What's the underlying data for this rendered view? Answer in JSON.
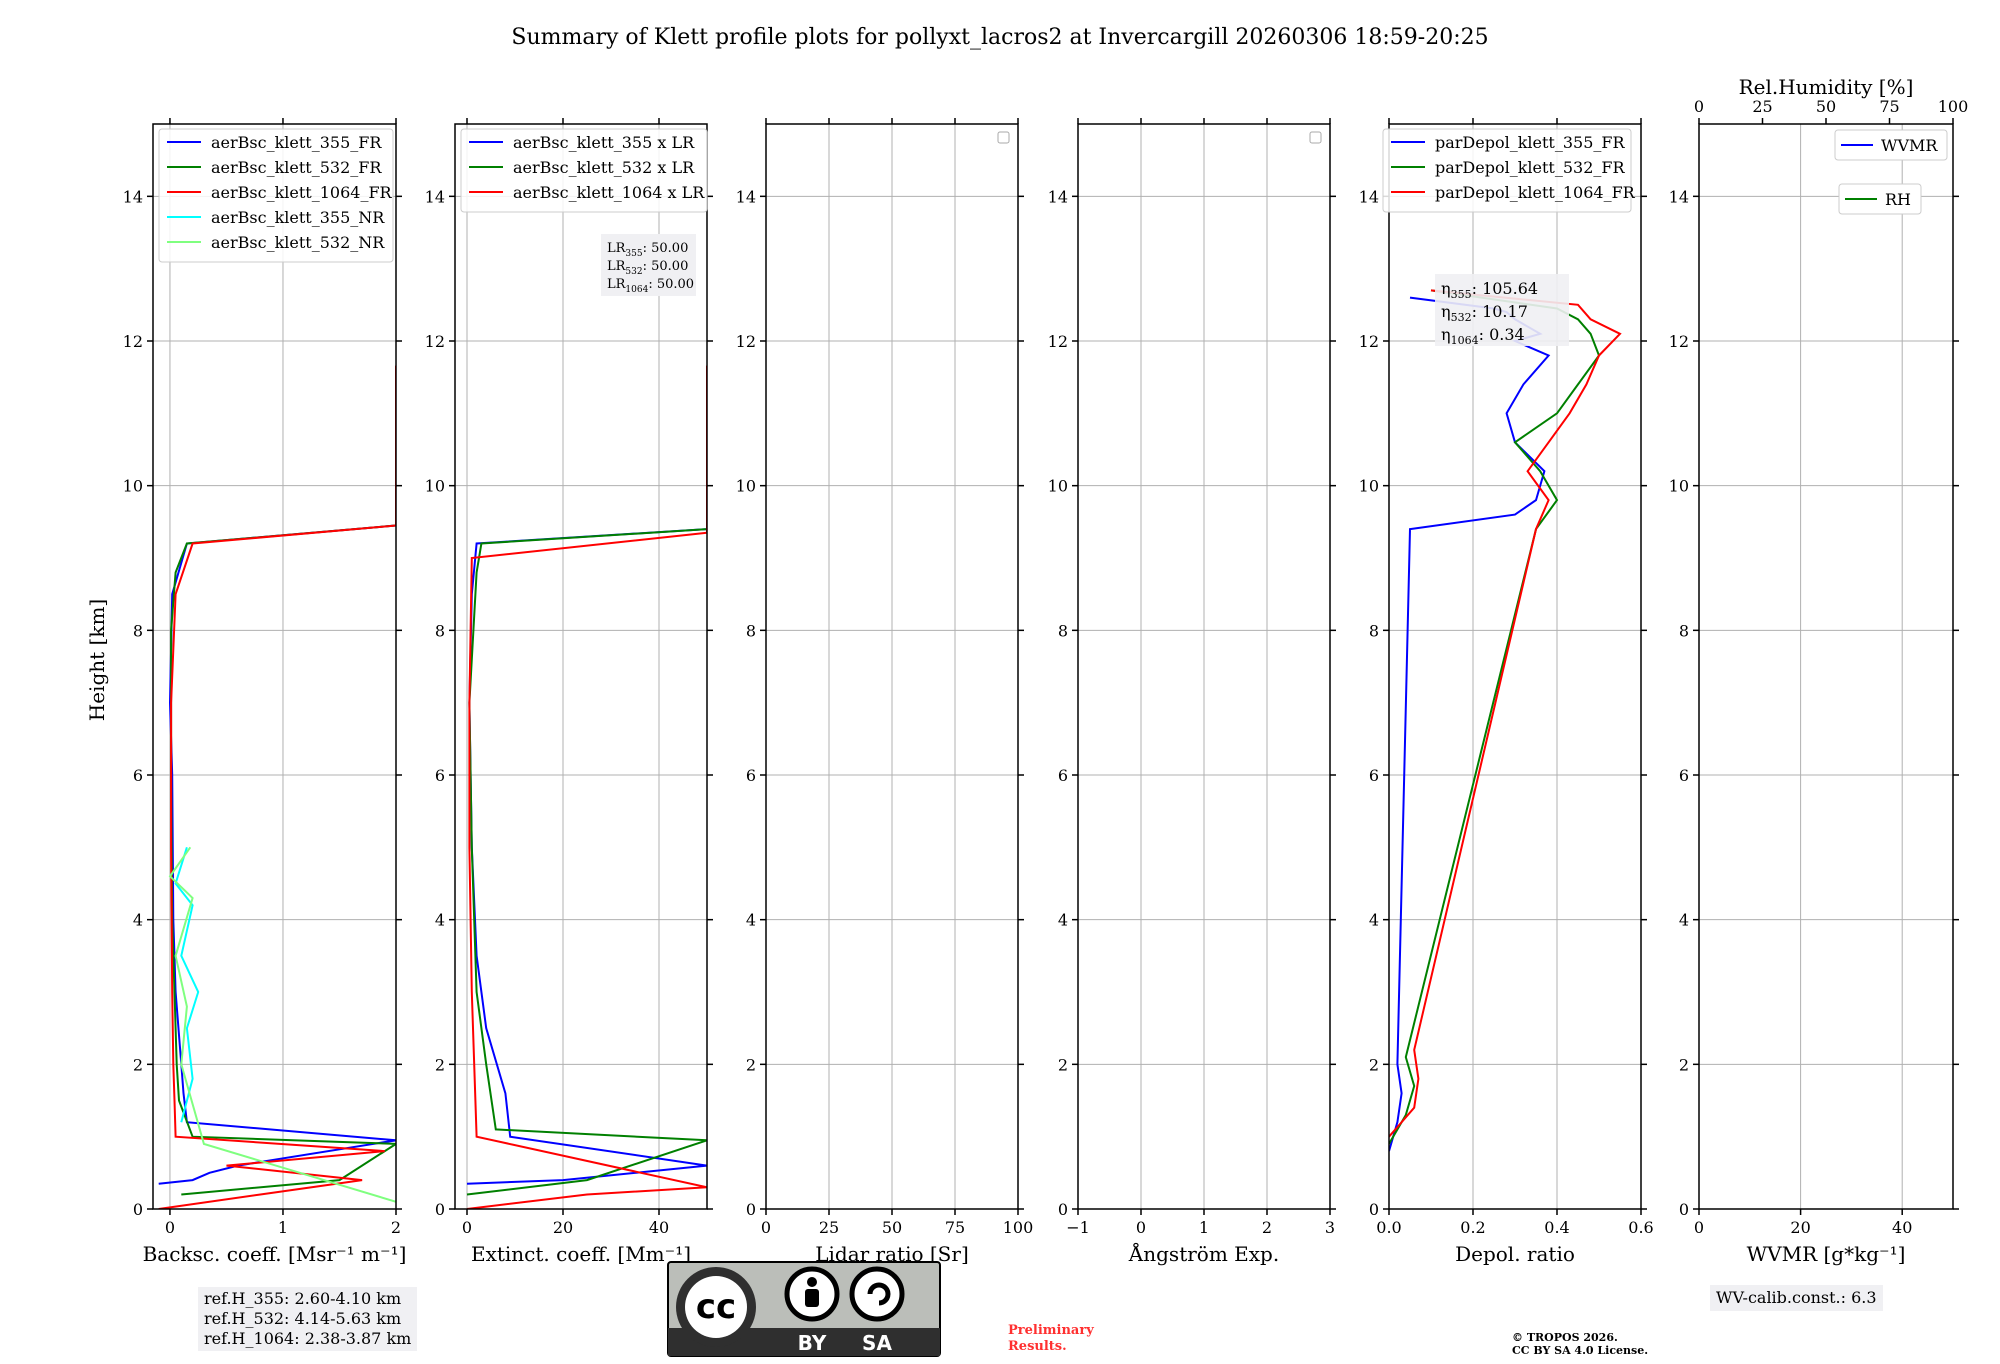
{
  "title": "Summary of Klett profile plots for pollyxt_lacros2 at Invercargill 20260306 18:59-20:25",
  "colors": {
    "blue": "#0000ff",
    "green": "#008000",
    "red": "#ff0000",
    "cyan": "#00ffff",
    "lightgreen": "#7fff7f",
    "grid": "#b0b0b0",
    "dark": "#2f2f2f"
  },
  "y_axis": {
    "label": "Height [km]",
    "ylim": [
      0,
      15
    ],
    "ticks": [
      0,
      2,
      4,
      6,
      8,
      10,
      12,
      14
    ]
  },
  "chart_data": [
    {
      "id": "backscatter",
      "type": "line",
      "xlabel": "Backsc. coeff. [Msr⁻¹ m⁻¹]",
      "xlim": [
        -0.15,
        2
      ],
      "xticks": [
        0,
        1,
        2
      ],
      "legend": [
        "aerBsc_klett_355_FR",
        "aerBsc_klett_532_FR",
        "aerBsc_klett_1064_FR",
        "aerBsc_klett_355_NR",
        "aerBsc_klett_532_NR"
      ],
      "legend_colors": [
        "blue",
        "green",
        "red",
        "cyan",
        "lightgreen"
      ],
      "series": [
        {
          "name": "aerBsc_klett_355_FR",
          "color": "blue",
          "x": [
            -0.1,
            0.2,
            0.35,
            0.6,
            2,
            0.15,
            0.12,
            0.1,
            0.05,
            0.03,
            0.02,
            0.0,
            0.02,
            0.15,
            2,
            2,
            2
          ],
          "y": [
            0.35,
            0.4,
            0.5,
            0.6,
            0.95,
            1.2,
            1.6,
            2.0,
            3.0,
            4.0,
            6.0,
            7.0,
            8.5,
            9.2,
            9.45,
            11.28,
            11.3
          ]
        },
        {
          "name": "aerBsc_klett_532_FR",
          "color": "green",
          "x": [
            0.1,
            1.5,
            2,
            0.2,
            0.08,
            0.06,
            0.04,
            0.02,
            0.01,
            0.01,
            0.05,
            0.15,
            2,
            2,
            2
          ],
          "y": [
            0.2,
            0.4,
            0.9,
            1.0,
            1.5,
            2.0,
            3.0,
            4.0,
            6.0,
            8.0,
            8.8,
            9.2,
            9.45,
            11.28,
            11.3
          ]
        },
        {
          "name": "aerBsc_klett_1064_FR",
          "color": "red",
          "x": [
            -0.1,
            0.8,
            1.7,
            0.5,
            1.9,
            0.05,
            0.04,
            0.03,
            0.02,
            0.01,
            0.01,
            0.05,
            0.2,
            2,
            2,
            2
          ],
          "y": [
            0.0,
            0.2,
            0.4,
            0.6,
            0.8,
            1.0,
            1.5,
            2.0,
            3.0,
            5.0,
            7.0,
            8.5,
            9.2,
            9.45,
            11.64,
            11.66
          ]
        },
        {
          "name": "aerBsc_klett_355_NR",
          "color": "cyan",
          "x": [
            0.1,
            0.2,
            0.15,
            0.25,
            0.1,
            0.2,
            0.05,
            0.15
          ],
          "y": [
            1.2,
            1.8,
            2.5,
            3.0,
            3.5,
            4.2,
            4.5,
            5.0
          ]
        },
        {
          "name": "aerBsc_klett_532_NR",
          "color": "lightgreen",
          "x": [
            2,
            0.3,
            0.1,
            0.15,
            0.05,
            0.2,
            0.0,
            0.18
          ],
          "y": [
            0.1,
            0.9,
            2.0,
            2.8,
            3.5,
            4.3,
            4.6,
            5.0
          ]
        }
      ]
    },
    {
      "id": "extinction",
      "type": "line",
      "xlabel": "Extinct. coeff. [Mm⁻¹]",
      "xlim": [
        -2.5,
        50
      ],
      "xticks": [
        0,
        20,
        40
      ],
      "legend": [
        "aerBsc_klett_355 x LR",
        "aerBsc_klett_532 x LR",
        "aerBsc_klett_1064 x LR"
      ],
      "legend_colors": [
        "blue",
        "green",
        "red"
      ],
      "annotation": [
        "LR355: 50.00",
        "LR532: 50.00",
        "LR1064: 50.00"
      ],
      "series": [
        {
          "name": "aerBsc_klett_355 x LR",
          "color": "blue",
          "x": [
            0,
            20,
            50,
            9,
            8,
            4,
            2,
            1,
            0.5,
            1,
            2,
            50,
            50,
            50
          ],
          "y": [
            0.35,
            0.4,
            0.6,
            1.0,
            1.6,
            2.5,
            3.5,
            5.0,
            7.0,
            8.5,
            9.2,
            9.4,
            11.28,
            11.3
          ]
        },
        {
          "name": "aerBsc_klett_532 x LR",
          "color": "green",
          "x": [
            0,
            25,
            50,
            6,
            4,
            2,
            1,
            0.5,
            2,
            3,
            50,
            50,
            50
          ],
          "y": [
            0.2,
            0.4,
            0.95,
            1.1,
            2.0,
            3.0,
            5.0,
            7.0,
            8.8,
            9.2,
            9.4,
            11.28,
            11.3
          ]
        },
        {
          "name": "aerBsc_klett_1064 x LR",
          "color": "red",
          "x": [
            0,
            25,
            50,
            2,
            1.5,
            1,
            0.5,
            0.5,
            1,
            50,
            50,
            50
          ],
          "y": [
            0.0,
            0.2,
            0.3,
            1.0,
            2.0,
            3.0,
            5.0,
            7.0,
            9.0,
            9.35,
            11.64,
            11.66
          ]
        }
      ]
    },
    {
      "id": "lidar_ratio",
      "type": "line",
      "xlabel": "Lidar ratio [Sr]",
      "xlim": [
        0,
        100
      ],
      "xticks": [
        0,
        25,
        50,
        75,
        100
      ],
      "legend": [],
      "series": []
    },
    {
      "id": "angstrom",
      "type": "line",
      "xlabel": "Ångström Exp.",
      "xlim": [
        -1,
        3
      ],
      "xticks": [
        -1,
        0,
        1,
        2,
        3
      ],
      "legend": [],
      "series": []
    },
    {
      "id": "depol",
      "type": "line",
      "xlabel": "Depol. ratio",
      "xlim": [
        0,
        0.6
      ],
      "xticks": [
        0.0,
        0.2,
        0.4,
        0.6
      ],
      "legend": [
        "parDepol_klett_355_FR",
        "parDepol_klett_532_FR",
        "parDepol_klett_1064_FR"
      ],
      "legend_colors": [
        "blue",
        "green",
        "red"
      ],
      "annotation": [
        "η355: 105.64",
        "η532: 10.17",
        "η1064: 0.34"
      ],
      "series": [
        {
          "name": "parDepol_klett_355_FR",
          "color": "blue",
          "x": [
            0.0,
            0.02,
            0.03,
            0.02,
            0.05,
            0.3,
            0.35,
            0.37,
            0.3,
            0.28,
            0.32,
            0.38,
            0.3,
            0.36,
            0.3,
            0.28,
            0.25,
            0.05
          ],
          "y": [
            0.8,
            1.2,
            1.6,
            2.0,
            9.4,
            9.6,
            9.8,
            10.2,
            10.6,
            11.0,
            11.4,
            11.8,
            12.0,
            12.1,
            12.3,
            12.4,
            12.45,
            12.6
          ]
        },
        {
          "name": "parDepol_klett_532_FR",
          "color": "green",
          "x": [
            0.0,
            0.04,
            0.06,
            0.04,
            0.35,
            0.4,
            0.36,
            0.3,
            0.4,
            0.45,
            0.5,
            0.48,
            0.45,
            0.4,
            0.1
          ],
          "y": [
            0.9,
            1.3,
            1.7,
            2.1,
            9.4,
            9.8,
            10.2,
            10.6,
            11.0,
            11.4,
            11.8,
            12.1,
            12.3,
            12.45,
            12.7
          ]
        },
        {
          "name": "parDepol_klett_1064_FR",
          "color": "red",
          "x": [
            0.0,
            0.06,
            0.07,
            0.06,
            0.35,
            0.38,
            0.33,
            0.38,
            0.43,
            0.47,
            0.5,
            0.55,
            0.48,
            0.45,
            0.1
          ],
          "y": [
            1.0,
            1.4,
            1.8,
            2.2,
            9.4,
            9.8,
            10.2,
            10.6,
            11.0,
            11.4,
            11.8,
            12.1,
            12.3,
            12.5,
            12.7
          ]
        }
      ]
    },
    {
      "id": "wvmr",
      "type": "line",
      "xlabel": "WVMR [g*kg⁻¹]",
      "xlim": [
        0,
        50
      ],
      "xticks": [
        0,
        20,
        40
      ],
      "top_label": "Rel.Humidity [%]",
      "top_xlim": [
        0,
        100
      ],
      "top_ticks": [
        0,
        25,
        50,
        75,
        100
      ],
      "legend": [
        "WVMR",
        "RH"
      ],
      "legend_colors": [
        "blue",
        "green"
      ],
      "series": []
    }
  ],
  "ref_heights": [
    "ref.H_355: 2.60-4.10 km",
    "ref.H_532: 4.14-5.63 km",
    "ref.H_1064: 2.38-3.87 km"
  ],
  "wv_calib": "WV-calib.const.: 6.3",
  "license_logo": {
    "cc": "cc",
    "by": "BY",
    "sa": "SA"
  },
  "preliminary": [
    "Preliminary",
    "Results."
  ],
  "copyright": [
    "© TROPOS 2026.",
    "CC BY SA 4.0 License."
  ]
}
